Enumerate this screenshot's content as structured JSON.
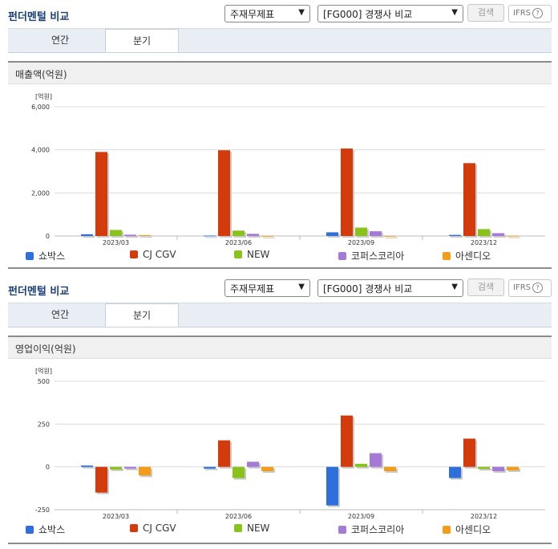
{
  "colors": {
    "series": [
      "#2e6fdb",
      "#d33b0c",
      "#8ac21c",
      "#a57ad6",
      "#f59b1a"
    ]
  },
  "sections": [
    {
      "title": "펀더멘털 비교",
      "select1": "주재무제표",
      "select2": "[FG000] 경쟁사 비교",
      "search_label": "검색",
      "ifrs_label": "IFRS",
      "help_icon": "question-circle-icon",
      "tabs": [
        "연간",
        "분기"
      ],
      "active_tab": 1,
      "panel_title": "매출액(억원)"
    },
    {
      "title": "펀더멘털 비교",
      "select1": "주재무제표",
      "select2": "[FG000] 경쟁사 비교",
      "search_label": "검색",
      "ifrs_label": "IFRS",
      "help_icon": "question-circle-icon",
      "tabs": [
        "연간",
        "분기"
      ],
      "active_tab": 1,
      "panel_title": "영업이익(억원)"
    }
  ],
  "chart_data": [
    {
      "type": "bar",
      "unit_label": "[억원]",
      "categories": [
        "2023/03",
        "2023/06",
        "2023/09",
        "2023/12"
      ],
      "ylim": [
        0,
        6000
      ],
      "yticks": [
        0,
        2000,
        4000,
        6000
      ],
      "ytick_labels": [
        "0",
        "2,000",
        "4,000",
        "6,000"
      ],
      "grid": true,
      "legend_position": "bottom",
      "series": [
        {
          "name": "쇼박스",
          "values": [
            80,
            20,
            170,
            50
          ]
        },
        {
          "name": "CJ CGV",
          "values": [
            3900,
            3980,
            4060,
            3380
          ]
        },
        {
          "name": "NEW",
          "values": [
            280,
            250,
            390,
            320
          ]
        },
        {
          "name": "코퍼스코리아",
          "values": [
            60,
            100,
            220,
            130
          ]
        },
        {
          "name": "아센디오",
          "values": [
            40,
            5,
            5,
            10
          ]
        }
      ]
    },
    {
      "type": "bar",
      "unit_label": "[억원]",
      "categories": [
        "2023/03",
        "2023/06",
        "2023/09",
        "2023/12"
      ],
      "ylim": [
        -250,
        500
      ],
      "yticks": [
        -250,
        0,
        250,
        500
      ],
      "ytick_labels": [
        "-250",
        "0",
        "250",
        "500"
      ],
      "grid": true,
      "legend_position": "bottom",
      "series": [
        {
          "name": "쇼박스",
          "values": [
            8,
            -10,
            -225,
            -65
          ]
        },
        {
          "name": "CJ CGV",
          "values": [
            -150,
            155,
            300,
            165
          ]
        },
        {
          "name": "NEW",
          "values": [
            -15,
            -65,
            18,
            -12
          ]
        },
        {
          "name": "코퍼스코리아",
          "values": [
            -10,
            30,
            80,
            -25
          ]
        },
        {
          "name": "아센디오",
          "values": [
            -50,
            -25,
            -25,
            -20
          ]
        }
      ]
    }
  ]
}
